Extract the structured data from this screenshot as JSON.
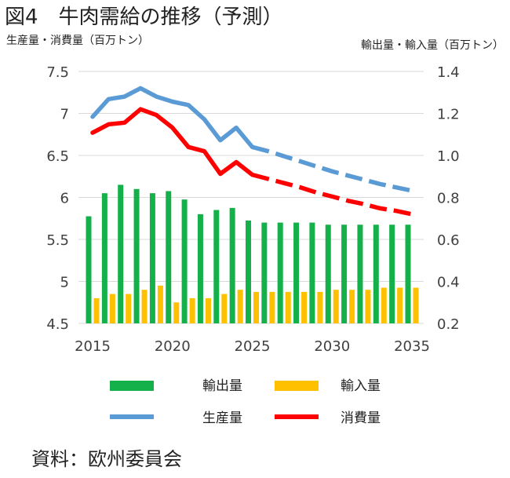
{
  "figure": {
    "title": "図4　牛肉需給の推移（予測）",
    "source": "資料：欧州委員会"
  },
  "colors": {
    "export": "#14b04a",
    "import": "#ffc000",
    "production": "#5b9bd5",
    "consumption": "#ff0000",
    "grid": "#d9d9d9",
    "text": "#404040"
  },
  "chart_data": {
    "type": "bar+line",
    "left_axis": {
      "label": "生産量・消費量（百万トン）",
      "ylim": [
        4.5,
        7.5
      ],
      "ticks": [
        4.5,
        5,
        5.5,
        6,
        6.5,
        7,
        7.5
      ],
      "tick_labels": [
        "4.5",
        "5",
        "5.5",
        "6",
        "6.5",
        "7",
        "7.5"
      ]
    },
    "right_axis": {
      "label": "輸出量・輸入量（百万トン）",
      "ylim": [
        0.2,
        1.4
      ],
      "ticks": [
        0.2,
        0.4,
        0.6,
        0.8,
        1.0,
        1.2,
        1.4
      ],
      "tick_labels": [
        "0.2",
        "0.4",
        "0.6",
        "0.8",
        "1.0",
        "1.2",
        "1.4"
      ]
    },
    "x_tick_labels": [
      "2015",
      "2020",
      "2025",
      "2030",
      "2035"
    ],
    "x_tick_years": [
      2015,
      2020,
      2025,
      2030,
      2035
    ],
    "years": [
      2015,
      2016,
      2017,
      2018,
      2019,
      2020,
      2021,
      2022,
      2023,
      2024,
      2025,
      2026,
      2027,
      2028,
      2029,
      2030,
      2031,
      2032,
      2033,
      2034,
      2035
    ],
    "projection_start_year": 2025,
    "series": [
      {
        "name": "輸出量",
        "kind": "bar",
        "axis": "right",
        "values": [
          0.71,
          0.82,
          0.86,
          0.84,
          0.82,
          0.83,
          0.79,
          0.72,
          0.74,
          0.75,
          0.69,
          0.68,
          0.68,
          0.68,
          0.68,
          0.67,
          0.67,
          0.67,
          0.67,
          0.67,
          0.67
        ]
      },
      {
        "name": "輸入量",
        "kind": "bar",
        "axis": "right",
        "values": [
          0.32,
          0.34,
          0.34,
          0.36,
          0.38,
          0.3,
          0.32,
          0.32,
          0.34,
          0.36,
          0.35,
          0.35,
          0.35,
          0.35,
          0.35,
          0.36,
          0.36,
          0.36,
          0.37,
          0.37,
          0.37
        ]
      },
      {
        "name": "生産量",
        "kind": "line",
        "axis": "left",
        "values": [
          6.96,
          7.17,
          7.2,
          7.3,
          7.2,
          7.14,
          7.1,
          6.93,
          6.68,
          6.83,
          6.6,
          6.55,
          6.49,
          6.43,
          6.37,
          6.31,
          6.26,
          6.21,
          6.16,
          6.12,
          6.08
        ]
      },
      {
        "name": "消費量",
        "kind": "line",
        "axis": "left",
        "values": [
          6.77,
          6.87,
          6.89,
          7.05,
          6.98,
          6.83,
          6.6,
          6.55,
          6.28,
          6.42,
          6.27,
          6.22,
          6.17,
          6.12,
          6.06,
          6.01,
          5.96,
          5.92,
          5.87,
          5.84,
          5.8
        ]
      }
    ],
    "legend": {
      "placement": "bottom",
      "items": [
        "輸出量",
        "輸入量",
        "生産量",
        "消費量"
      ]
    }
  }
}
